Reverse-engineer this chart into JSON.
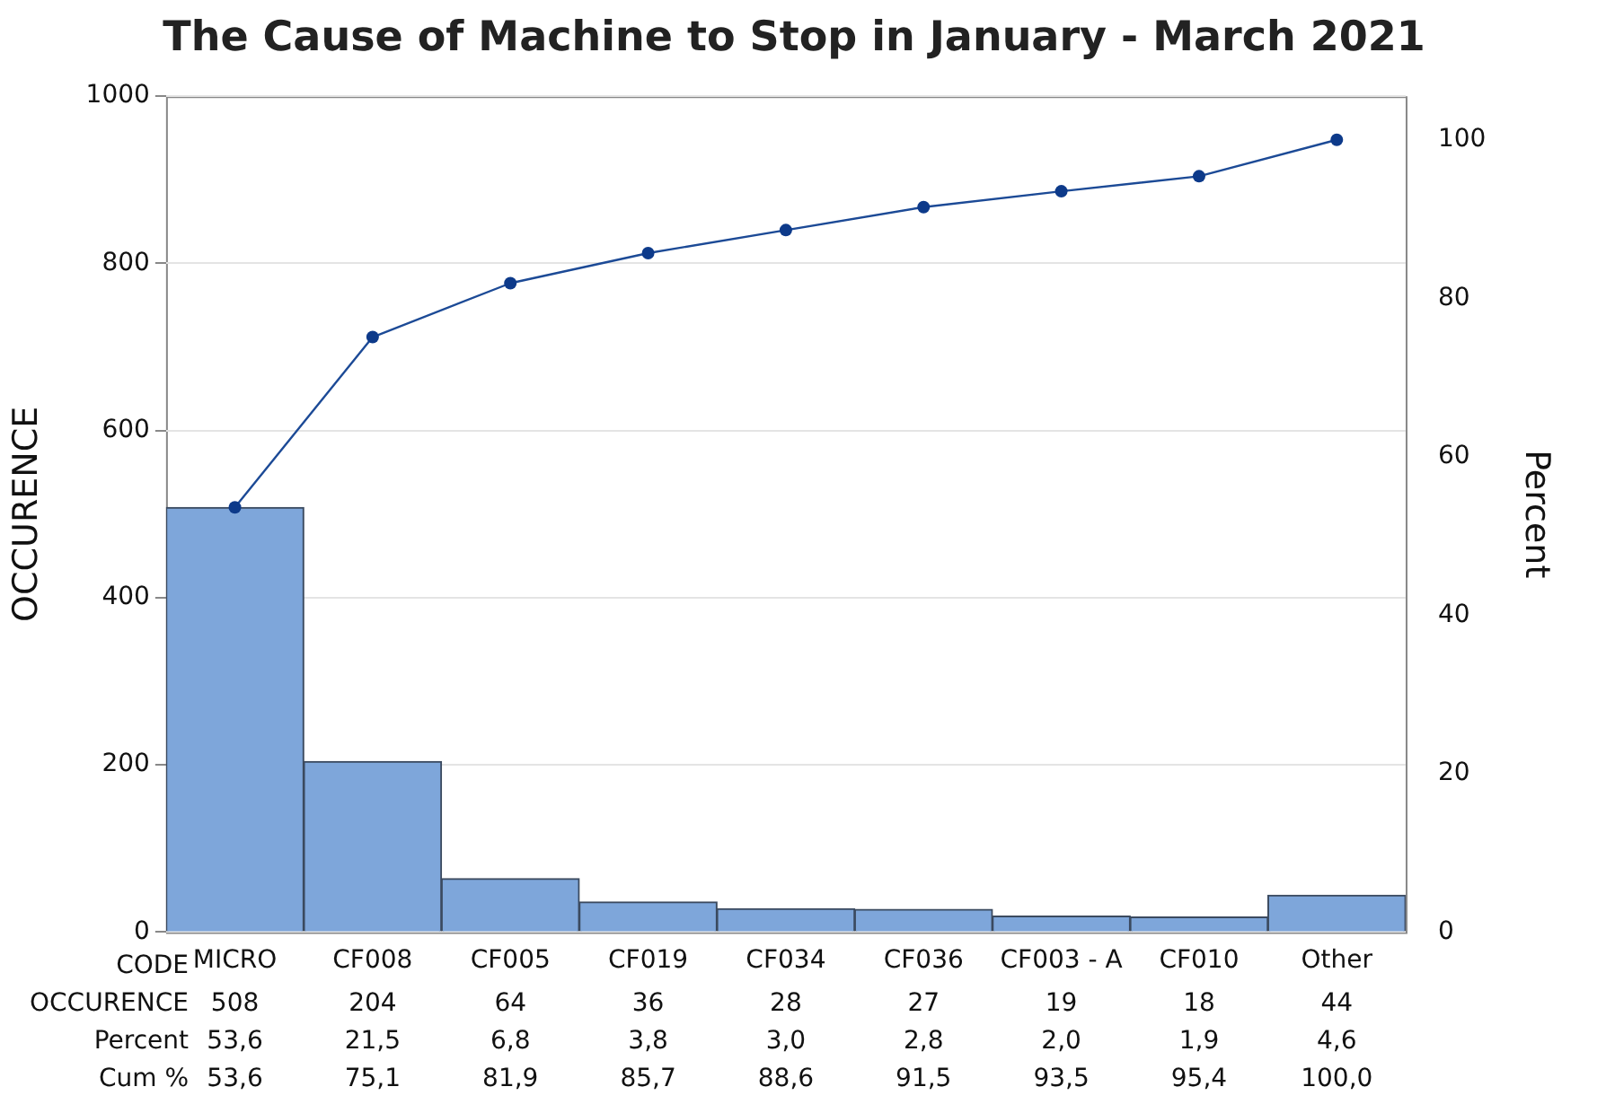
{
  "chart_data": {
    "type": "bar",
    "title": "The Cause of Machine to Stop in January - March 2021",
    "xlabel": "CODE",
    "ylabel": "OCCURENCE",
    "y2label": "Percent",
    "categories": [
      "MICRO",
      "CF008",
      "CF005",
      "CF019",
      "CF034",
      "CF036",
      "CF003 - A",
      "CF010",
      "Other"
    ],
    "series": [
      {
        "name": "OCCURENCE",
        "color": "#7ea6da",
        "values": [
          508,
          204,
          64,
          36,
          28,
          27,
          19,
          18,
          44
        ],
        "value_labels": [
          "508",
          "204",
          "64",
          "36",
          "28",
          "27",
          "19",
          "18",
          "44"
        ]
      },
      {
        "type": "line",
        "axis": "y2",
        "color": "#1c4a96",
        "values": [
          53.6,
          75.1,
          81.9,
          85.7,
          88.6,
          91.5,
          93.5,
          95.4,
          100.0
        ],
        "value_labels": [
          "53,6",
          "75,1",
          "81,9",
          "85,7",
          "88,6",
          "91,5",
          "93,5",
          "95,4",
          "100,0"
        ]
      }
    ],
    "annotations": [
      "Percent",
      "53,6",
      "21,5",
      "6,8",
      "3,8",
      "3,0",
      "2,8",
      "2,0",
      "1,9",
      "4,6",
      "Cum %"
    ],
    "ylim": [
      0,
      1000
    ],
    "yticks": [
      0,
      200,
      400,
      600,
      800,
      1000
    ],
    "y2lim": [
      0,
      105.5
    ],
    "y2ticks": [
      0,
      20,
      40,
      60,
      80,
      100
    ],
    "grid": "y",
    "legend": false,
    "marker": "circle",
    "line_style": "solid"
  }
}
